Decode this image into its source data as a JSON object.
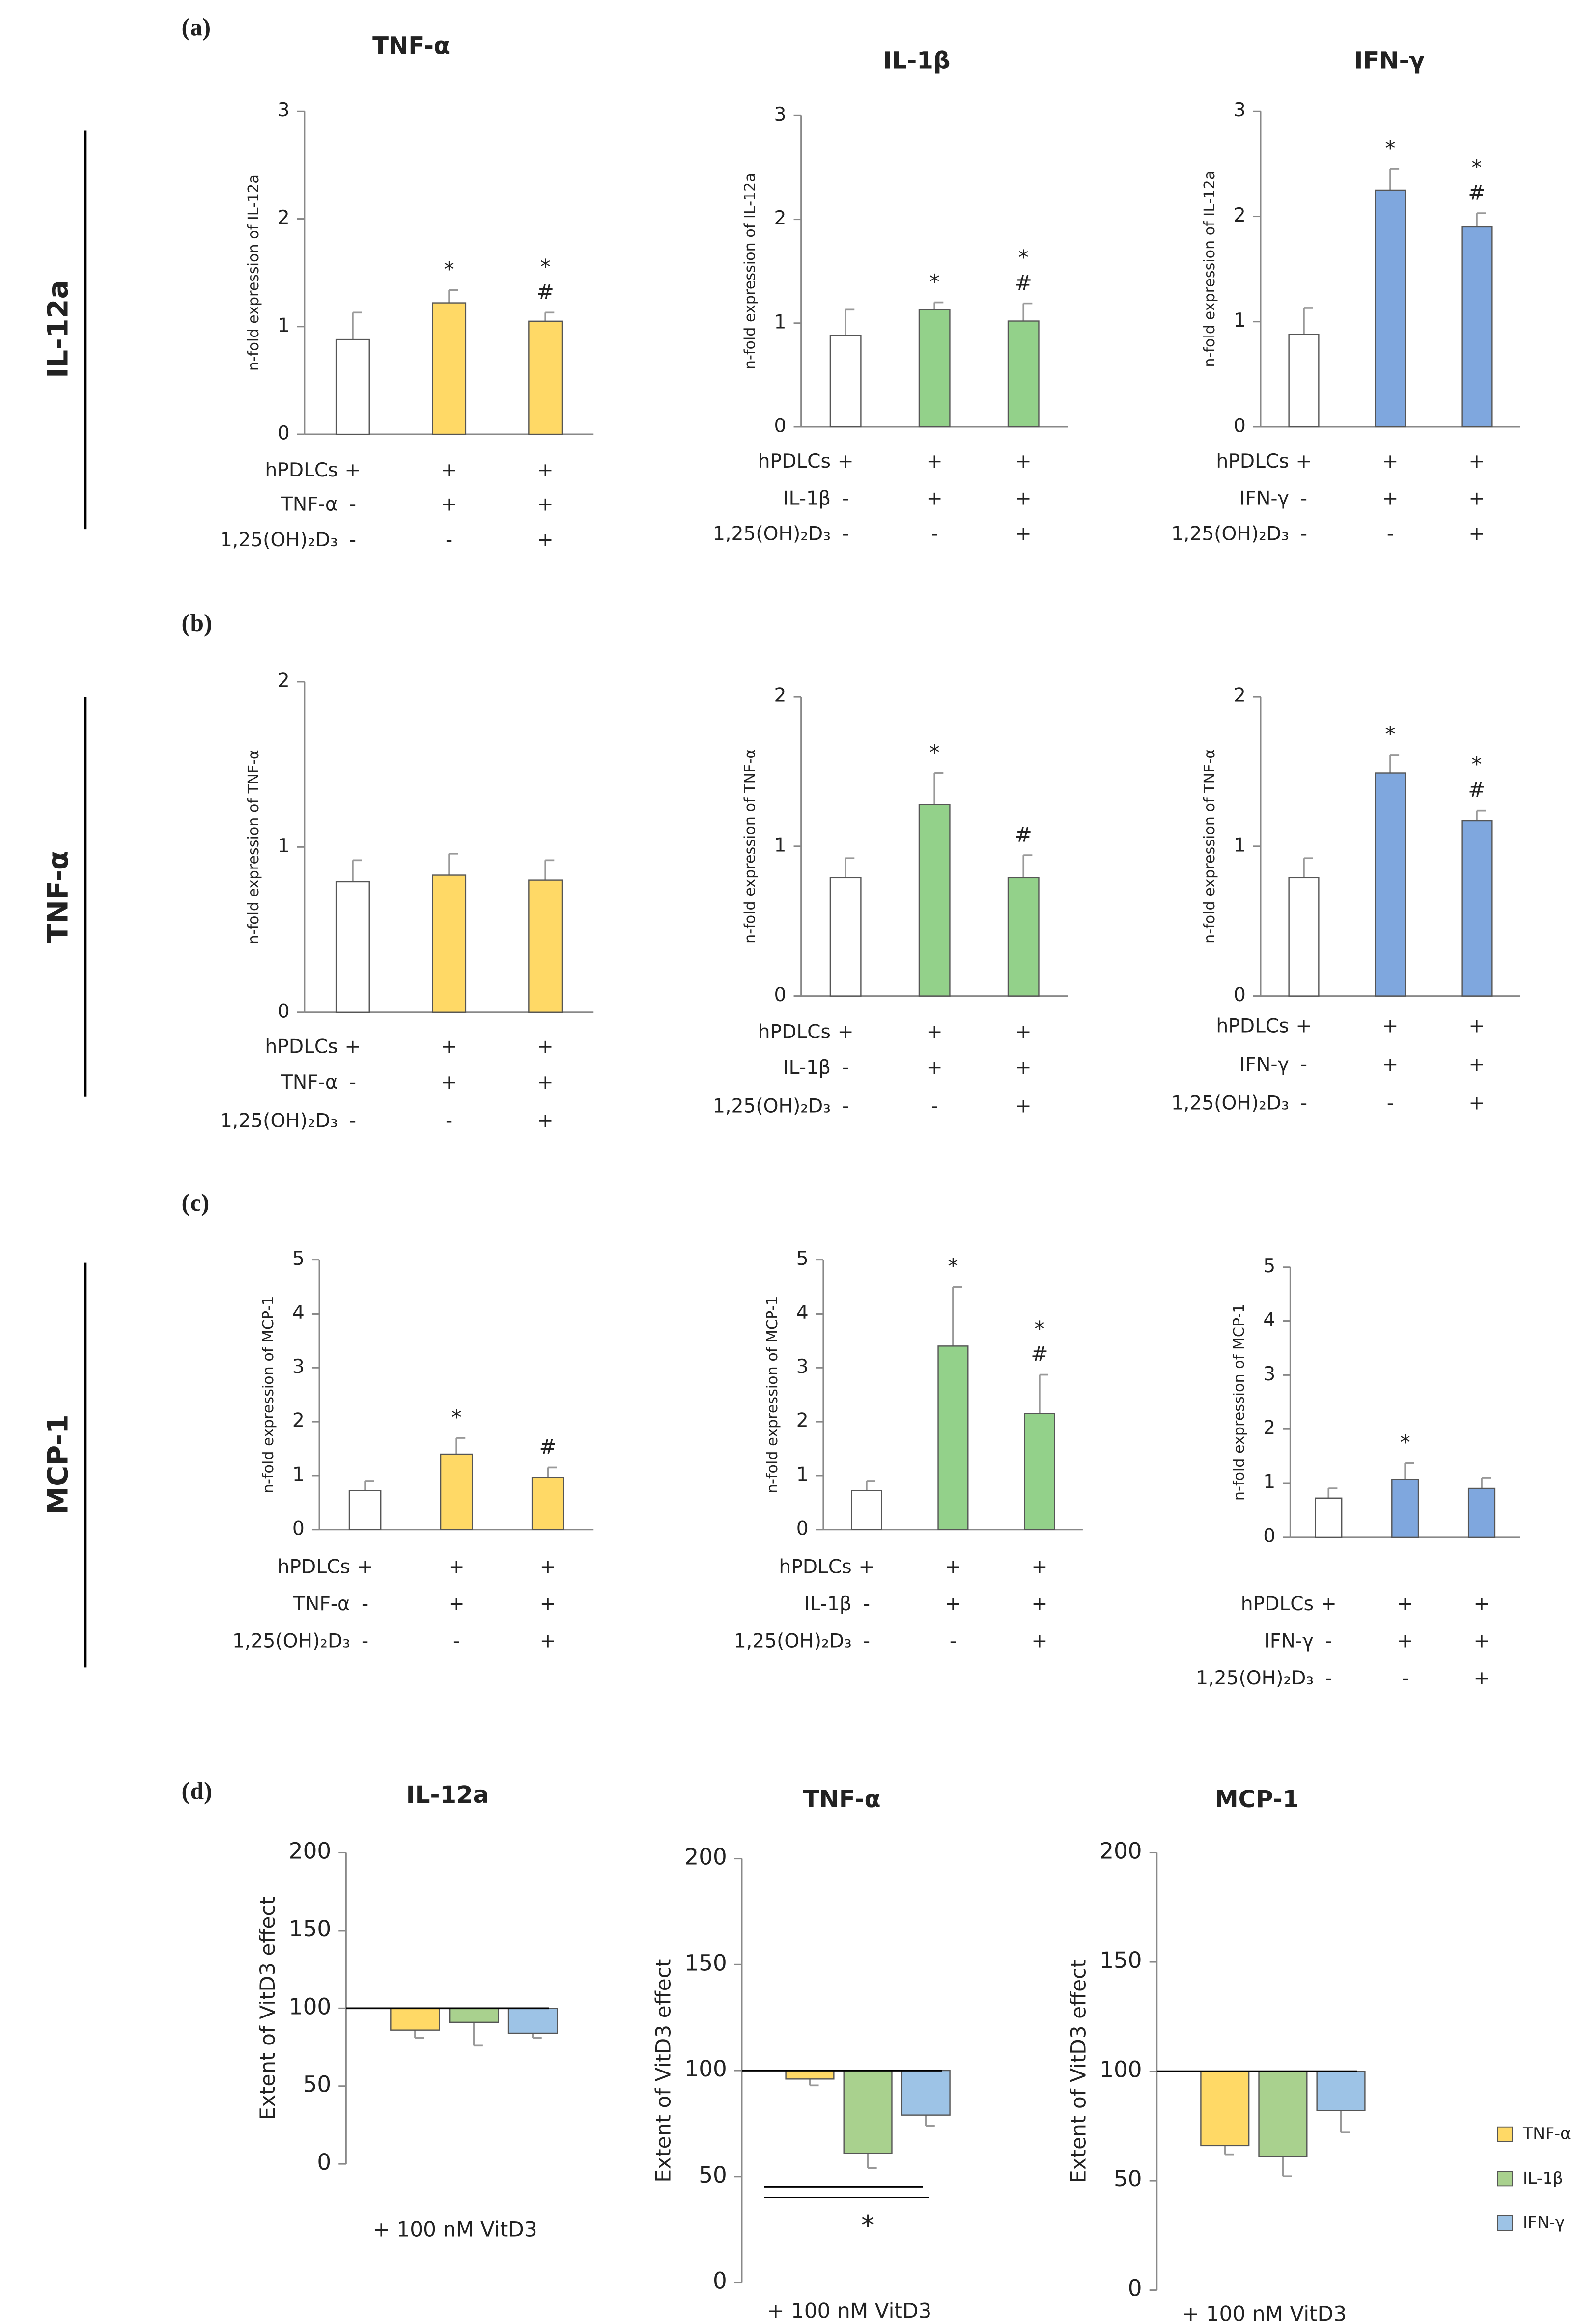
{
  "panel_labels": [
    "(a)",
    "(b)",
    "(c)",
    "(d)"
  ],
  "row_labels": [
    "IL-12a",
    "TNF-α",
    "MCP-1"
  ],
  "chart_data": [
    {
      "type": "bar",
      "title": "TNF-α",
      "y_label": "n-fold expression of IL-12a",
      "ylim": [
        0,
        3
      ],
      "yticks": [
        0,
        1,
        2,
        3
      ],
      "values": [
        0.88,
        1.22,
        1.05
      ],
      "errors": [
        0.25,
        0.12,
        0.08
      ],
      "colors": [
        "#ffffff",
        "#ffd966",
        "#ffd966"
      ],
      "annotations": [
        [],
        [
          "*"
        ],
        [
          "*",
          "#"
        ]
      ],
      "conditions": [
        {
          "label": "hPDLCs",
          "signs": [
            "+",
            "+",
            "+"
          ]
        },
        {
          "label": "TNF-α",
          "signs": [
            "-",
            "+",
            "+"
          ]
        },
        {
          "label": "1,25(OH)₂D₃",
          "signs": [
            "-",
            "-",
            "+"
          ]
        }
      ]
    },
    {
      "type": "bar",
      "title": "IL-1β",
      "y_label": "n-fold expression of IL-12a",
      "ylim": [
        0,
        3
      ],
      "yticks": [
        0,
        1,
        2,
        3
      ],
      "values": [
        0.88,
        1.13,
        1.02
      ],
      "errors": [
        0.25,
        0.07,
        0.17
      ],
      "colors": [
        "#ffffff",
        "#93d18a",
        "#93d18a"
      ],
      "annotations": [
        [],
        [
          "*"
        ],
        [
          "*",
          "#"
        ]
      ],
      "conditions": [
        {
          "label": "hPDLCs",
          "signs": [
            "+",
            "+",
            "+"
          ]
        },
        {
          "label": "IL-1β",
          "signs": [
            "-",
            "+",
            "+"
          ]
        },
        {
          "label": "1,25(OH)₂D₃",
          "signs": [
            "-",
            "-",
            "+"
          ]
        }
      ]
    },
    {
      "type": "bar",
      "title": "IFN-γ",
      "y_label": "n-fold expression of IL-12a",
      "ylim": [
        0,
        3
      ],
      "yticks": [
        0,
        1,
        2,
        3
      ],
      "values": [
        0.88,
        2.25,
        1.9
      ],
      "errors": [
        0.25,
        0.2,
        0.13
      ],
      "colors": [
        "#ffffff",
        "#7fa7de",
        "#7fa7de"
      ],
      "annotations": [
        [],
        [
          "*"
        ],
        [
          "*",
          "#"
        ]
      ],
      "conditions": [
        {
          "label": "hPDLCs",
          "signs": [
            "+",
            "+",
            "+"
          ]
        },
        {
          "label": "IFN-γ",
          "signs": [
            "-",
            "+",
            "+"
          ]
        },
        {
          "label": "1,25(OH)₂D₃",
          "signs": [
            "-",
            "-",
            "+"
          ]
        }
      ]
    },
    {
      "type": "bar",
      "y_label": "n-fold expression of TNF-α",
      "ylim": [
        0,
        2
      ],
      "yticks": [
        0,
        1,
        2
      ],
      "values": [
        0.79,
        0.83,
        0.8
      ],
      "errors": [
        0.13,
        0.13,
        0.12
      ],
      "colors": [
        "#ffffff",
        "#ffd966",
        "#ffd966"
      ],
      "annotations": [
        [],
        [],
        []
      ],
      "conditions": [
        {
          "label": "hPDLCs",
          "signs": [
            "+",
            "+",
            "+"
          ]
        },
        {
          "label": "TNF-α",
          "signs": [
            "-",
            "+",
            "+"
          ]
        },
        {
          "label": "1,25(OH)₂D₃",
          "signs": [
            "-",
            "-",
            "+"
          ]
        }
      ]
    },
    {
      "type": "bar",
      "y_label": "n-fold expression of TNF-α",
      "ylim": [
        0,
        2
      ],
      "yticks": [
        0,
        1,
        2
      ],
      "values": [
        0.79,
        1.28,
        0.79
      ],
      "errors": [
        0.13,
        0.21,
        0.15
      ],
      "colors": [
        "#ffffff",
        "#93d18a",
        "#93d18a"
      ],
      "annotations": [
        [],
        [
          "*"
        ],
        [
          "#"
        ]
      ],
      "conditions": [
        {
          "label": "hPDLCs",
          "signs": [
            "+",
            "+",
            "+"
          ]
        },
        {
          "label": "IL-1β",
          "signs": [
            "-",
            "+",
            "+"
          ]
        },
        {
          "label": "1,25(OH)₂D₃",
          "signs": [
            "-",
            "-",
            "+"
          ]
        }
      ]
    },
    {
      "type": "bar",
      "y_label": "n-fold expression of TNF-α",
      "ylim": [
        0,
        2
      ],
      "yticks": [
        0,
        1,
        2
      ],
      "values": [
        0.79,
        1.49,
        1.17
      ],
      "errors": [
        0.13,
        0.12,
        0.07
      ],
      "colors": [
        "#ffffff",
        "#7fa7de",
        "#7fa7de"
      ],
      "annotations": [
        [],
        [
          "*"
        ],
        [
          "*",
          "#"
        ]
      ],
      "conditions": [
        {
          "label": "hPDLCs",
          "signs": [
            "+",
            "+",
            "+"
          ]
        },
        {
          "label": "IFN-γ",
          "signs": [
            "-",
            "+",
            "+"
          ]
        },
        {
          "label": "1,25(OH)₂D₃",
          "signs": [
            "-",
            "-",
            "+"
          ]
        }
      ]
    },
    {
      "type": "bar",
      "y_label": "n-fold expression of MCP-1",
      "ylim": [
        0,
        5
      ],
      "yticks": [
        0,
        1,
        2,
        3,
        4,
        5
      ],
      "values": [
        0.72,
        1.4,
        0.97
      ],
      "errors": [
        0.18,
        0.3,
        0.18
      ],
      "colors": [
        "#ffffff",
        "#ffd966",
        "#ffd966"
      ],
      "annotations": [
        [],
        [
          "*"
        ],
        [
          "#"
        ]
      ],
      "conditions": [
        {
          "label": "hPDLCs",
          "signs": [
            "+",
            "+",
            "+"
          ]
        },
        {
          "label": "TNF-α",
          "signs": [
            "-",
            "+",
            "+"
          ]
        },
        {
          "label": "1,25(OH)₂D₃",
          "signs": [
            "-",
            "-",
            "+"
          ]
        }
      ]
    },
    {
      "type": "bar",
      "y_label": "n-fold expression of MCP-1",
      "ylim": [
        0,
        5
      ],
      "yticks": [
        0,
        1,
        2,
        3,
        4,
        5
      ],
      "values": [
        0.72,
        3.4,
        2.15
      ],
      "errors": [
        0.18,
        1.1,
        0.72
      ],
      "colors": [
        "#ffffff",
        "#93d18a",
        "#93d18a"
      ],
      "annotations": [
        [],
        [
          "*"
        ],
        [
          "*",
          "#"
        ]
      ],
      "conditions": [
        {
          "label": "hPDLCs",
          "signs": [
            "+",
            "+",
            "+"
          ]
        },
        {
          "label": "IL-1β",
          "signs": [
            "-",
            "+",
            "+"
          ]
        },
        {
          "label": "1,25(OH)₂D₃",
          "signs": [
            "-",
            "-",
            "+"
          ]
        }
      ]
    },
    {
      "type": "bar",
      "y_label": "n-fold expression of MCP-1",
      "ylim": [
        0,
        5
      ],
      "yticks": [
        0,
        1,
        2,
        3,
        4,
        5
      ],
      "values": [
        0.72,
        1.07,
        0.9
      ],
      "errors": [
        0.18,
        0.3,
        0.2
      ],
      "colors": [
        "#ffffff",
        "#7fa7de",
        "#7fa7de"
      ],
      "annotations": [
        [],
        [
          "*"
        ],
        []
      ],
      "conditions": [
        {
          "label": "hPDLCs",
          "signs": [
            "+",
            "+",
            "+"
          ]
        },
        {
          "label": "IFN-γ",
          "signs": [
            "-",
            "+",
            "+"
          ]
        },
        {
          "label": "1,25(OH)₂D₃",
          "signs": [
            "-",
            "-",
            "+"
          ]
        }
      ]
    },
    {
      "type": "effect",
      "title": "IL-12a",
      "y_label": "Extent of VitD3 effect",
      "x_label": "+ 100 nM VitD3",
      "baseline": 100,
      "ylim": [
        0,
        200
      ],
      "yticks": [
        0,
        50,
        100,
        150,
        200
      ],
      "values": [
        86,
        91,
        84
      ],
      "errors": [
        5,
        15,
        3
      ],
      "colors": [
        "#ffd966",
        "#a9d18e",
        "#9dc3e6"
      ]
    },
    {
      "type": "effect",
      "title": "TNF-α",
      "y_label": "Extent of VitD3 effect",
      "x_label": "+ 100 nM VitD3",
      "baseline": 100,
      "ylim": [
        0,
        200
      ],
      "yticks": [
        0,
        50,
        100,
        150,
        200
      ],
      "values": [
        96,
        61,
        79
      ],
      "errors": [
        3,
        7,
        5
      ],
      "colors": [
        "#ffd966",
        "#a9d18e",
        "#9dc3e6"
      ],
      "significance": "*"
    },
    {
      "type": "effect",
      "title": "MCP-1",
      "y_label": "Extent of VitD3 effect",
      "x_label": "+ 100 nM VitD3",
      "baseline": 100,
      "ylim": [
        0,
        200
      ],
      "yticks": [
        0,
        50,
        100,
        150,
        200
      ],
      "values": [
        66,
        61,
        82
      ],
      "errors": [
        4,
        9,
        10
      ],
      "colors": [
        "#ffd966",
        "#a9d18e",
        "#9dc3e6"
      ],
      "legend": [
        {
          "name": "TNF-α",
          "color": "#ffd966"
        },
        {
          "name": "IL-1β",
          "color": "#a9d18e"
        },
        {
          "name": "IFN-γ",
          "color": "#9dc3e6"
        }
      ]
    }
  ]
}
